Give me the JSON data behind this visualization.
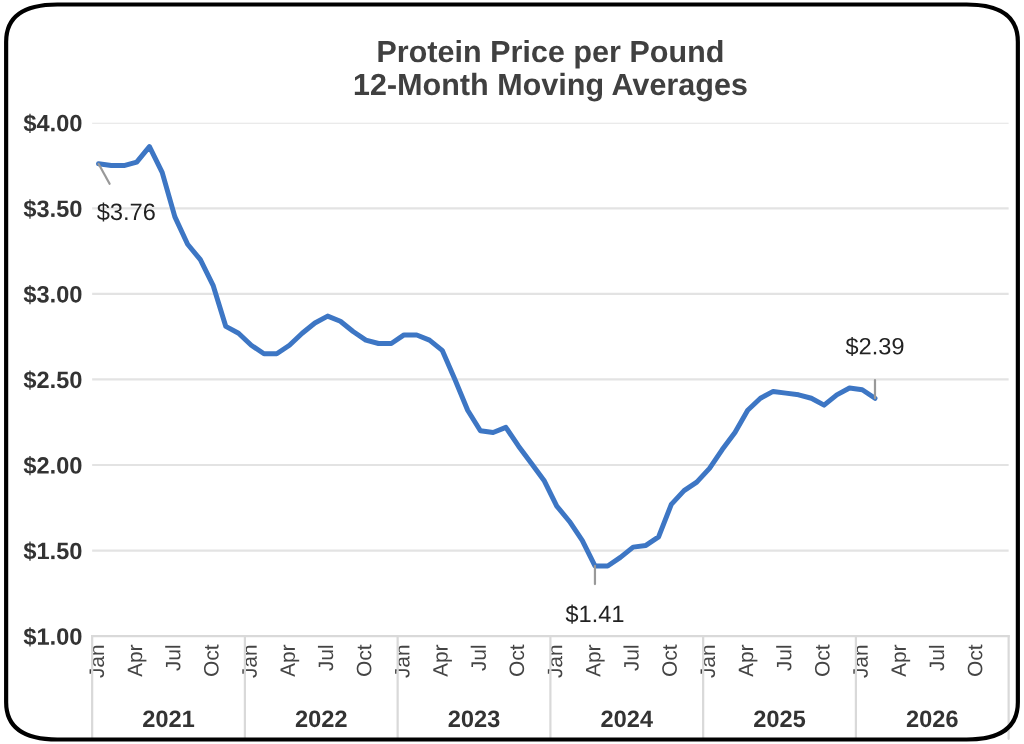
{
  "chart_data": {
    "type": "line",
    "title": "Protein Price per Pound\n12-Month Moving Averages",
    "categories": [
      "Jan",
      null,
      null,
      "Apr",
      null,
      null,
      "Jul",
      null,
      null,
      "Oct",
      null,
      null,
      "Jan",
      null,
      null,
      "Apr",
      null,
      null,
      "Jul",
      null,
      null,
      "Oct",
      null,
      null,
      "Jan",
      null,
      null,
      "Apr",
      null,
      null,
      "Jul",
      null,
      null,
      "Oct",
      null,
      null,
      "Jan",
      null,
      null,
      "Apr",
      null,
      null,
      "Jul",
      null,
      null,
      "Oct",
      null,
      null,
      "Jan",
      null,
      null,
      "Apr",
      null,
      null,
      "Jul",
      null,
      null,
      "Oct",
      null,
      null,
      "Jan",
      null,
      null,
      "Apr",
      null,
      null,
      "Jul",
      null,
      null,
      "Oct",
      null,
      null
    ],
    "series": [
      {
        "color": "#3d76c4",
        "values": [
          3.76,
          3.75,
          3.75,
          3.77,
          3.86,
          3.71,
          3.45,
          3.29,
          3.2,
          3.05,
          2.81,
          2.77,
          2.7,
          2.65,
          2.65,
          2.7,
          2.77,
          2.83,
          2.87,
          2.84,
          2.78,
          2.73,
          2.71,
          2.71,
          2.76,
          2.76,
          2.73,
          2.67,
          2.5,
          2.32,
          2.2,
          2.19,
          2.22,
          2.11,
          2.01,
          1.91,
          1.76,
          1.67,
          1.56,
          1.41,
          1.41,
          1.46,
          1.52,
          1.53,
          1.58,
          1.77,
          1.85,
          1.9,
          1.98,
          2.09,
          2.19,
          2.32,
          2.39,
          2.43,
          2.42,
          2.41,
          2.39,
          2.35,
          2.41,
          2.45,
          2.44,
          2.39,
          null,
          null,
          null,
          null,
          null,
          null,
          null,
          null,
          null,
          null
        ],
        "value_labels": [
          "$3.76",
          null,
          null,
          null,
          null,
          null,
          null,
          null,
          null,
          null,
          null,
          null,
          null,
          null,
          null,
          null,
          null,
          null,
          null,
          null,
          null,
          null,
          null,
          null,
          null,
          null,
          null,
          null,
          null,
          null,
          null,
          null,
          null,
          null,
          null,
          null,
          null,
          null,
          null,
          "$1.41",
          null,
          null,
          null,
          null,
          null,
          null,
          null,
          null,
          null,
          null,
          null,
          null,
          null,
          null,
          null,
          null,
          null,
          null,
          null,
          null,
          null,
          "$2.39",
          null,
          null,
          null,
          null,
          null,
          null,
          null,
          null,
          null,
          null
        ]
      }
    ],
    "ylim": [
      1,
      4
    ],
    "yticks": [
      {
        "value": 1,
        "label": "$1.00"
      },
      {
        "value": 1.5,
        "label": "$1.50"
      },
      {
        "value": 2,
        "label": "$2.00"
      },
      {
        "value": 2.5,
        "label": "$2.50"
      },
      {
        "value": 3,
        "label": "$3.00"
      },
      {
        "value": 3.5,
        "label": "$3.50"
      },
      {
        "value": 4,
        "label": "$4.00"
      }
    ],
    "annotations": [
      "2021",
      "2022",
      "2023",
      "2024",
      "2025",
      "2026"
    ],
    "grid": "y",
    "legend": false,
    "marker": "none",
    "line_style": "solid"
  }
}
